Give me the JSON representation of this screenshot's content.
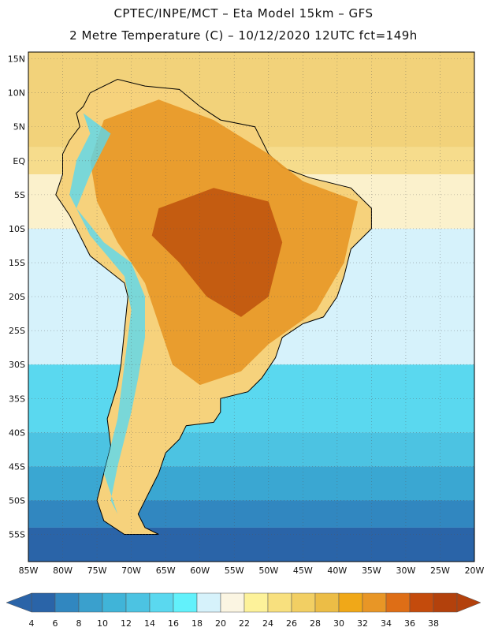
{
  "header": {
    "line1": "CPTEC/INPE/MCT –  Eta Model 15km – GFS",
    "line2": "2 Metre Temperature (C) – 10/12/2020 12UTC fct=149h"
  },
  "map": {
    "lat_labels": [
      "15N",
      "10N",
      "5N",
      "EQ",
      "5S",
      "10S",
      "15S",
      "20S",
      "25S",
      "30S",
      "35S",
      "40S",
      "45S",
      "50S",
      "55S"
    ],
    "lon_labels": [
      "85W",
      "80W",
      "75W",
      "70W",
      "65W",
      "60W",
      "55W",
      "50W",
      "45W",
      "40W",
      "35W",
      "30W",
      "25W",
      "20W"
    ],
    "ocean_bands": [
      {
        "color": "#f2d27a"
      },
      {
        "color": "#f6dc8c"
      },
      {
        "color": "#fbf1cc"
      },
      {
        "color": "#d6f2fb"
      },
      {
        "color": "#5ad8ef"
      },
      {
        "color": "#4cc3e2"
      },
      {
        "color": "#3aa7d2"
      },
      {
        "color": "#3187c0"
      },
      {
        "color": "#2a64a8"
      }
    ],
    "land_hot": "#c0550e",
    "land_warm": "#e89a2a",
    "land_mild": "#f6d27c"
  },
  "legend": {
    "labels": [
      "4",
      "6",
      "8",
      "10",
      "12",
      "14",
      "16",
      "18",
      "20",
      "22",
      "24",
      "26",
      "28",
      "30",
      "32",
      "34",
      "36",
      "38"
    ],
    "colors": [
      "#2a64a8",
      "#3187c0",
      "#3aa0cd",
      "#40b4d8",
      "#4cc3e2",
      "#5ad8ef",
      "#62f1fb",
      "#d6f2fb",
      "#fbf5e2",
      "#fdf29a",
      "#f8e07e",
      "#f2cf63",
      "#ecbd46",
      "#f0a818",
      "#e89626",
      "#de6e16",
      "#c44b0c",
      "#b3410c"
    ],
    "left_arrow_color": "#2a64a8",
    "right_arrow_color": "#b3410c"
  }
}
